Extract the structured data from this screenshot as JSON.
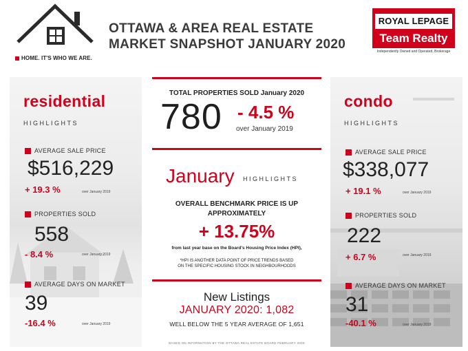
{
  "header": {
    "tagline": "HOME. IT'S WHO WE ARE.",
    "title_line1": "OTTAWA & AREA REAL ESTATE",
    "title_line2": "MARKET SNAPSHOT JANUARY 2020",
    "brand_line1": "ROYAL LEPAGE",
    "brand_line2": "Team Realty",
    "brand_sub": "Independently Owned and Operated, Brokerage",
    "logo_icon": "house-icon",
    "accent_color": "#d0021b"
  },
  "residential": {
    "title": "residential",
    "highlights": "HIGHLIGHTS",
    "avg_price_label": "AVERAGE SALE PRICE",
    "avg_price": "$516,229",
    "avg_price_change": "+ 19.3 %",
    "avg_price_over": "over January 2019",
    "sold_label": "PROPERTIES SOLD",
    "sold": "558",
    "sold_change": "- 8.4 %",
    "sold_over": "over January 2019",
    "dom_label": "AVERAGE DAYS ON MARKET",
    "dom": "39",
    "dom_change": "-16.4 %",
    "dom_over": "over January 2019"
  },
  "condo": {
    "title": "condo",
    "highlights": "HIGHLIGHTS",
    "avg_price_label": "AVERAGE SALE PRICE",
    "avg_price": "$338,077",
    "avg_price_change": "+ 19.1 %",
    "avg_price_over": "over January 2019",
    "sold_label": "PROPERTIES SOLD",
    "sold": "222",
    "sold_change": "+ 6.7 %",
    "sold_over": "over January 2019",
    "dom_label": "AVERAGE DAYS ON MARKET",
    "dom": "31",
    "dom_change": "-40.1 %",
    "dom_over": "over January 2019"
  },
  "center": {
    "total_label": "TOTAL PROPERTIES SOLD January 2020",
    "total": "780",
    "total_change": "- 4.5 %",
    "total_over": "over January 2019",
    "month": "January",
    "month_highlights": "HIGHLIGHTS",
    "benchmark_line1": "OVERALL BENCHMARK PRICE IS UP",
    "benchmark_line2": "APPROXIMATELY",
    "benchmark_change": "+ 13.75%",
    "benchmark_from": "from last year base on the Board's Housing Price Index (HPI),",
    "hpi_note_line1": "*HPI IS ANOTHER DATA POINT OF PRICE TRENDS BASED",
    "hpi_note_line2": "ON THE SPECIFIC HOUSING STOCK IN NEIGHBOURHOODS",
    "new_listings_label": "New Listings",
    "new_listings_value": "JANUARY 2020: 1,082",
    "new_listings_compare": "WELL BELOW THE 5 YEAR AVERAGE OF 1,651",
    "source": "BASED ON INFORMATION BY THE OTTAWA REAL ESTATE BOARD FEBRUARY 2020"
  }
}
